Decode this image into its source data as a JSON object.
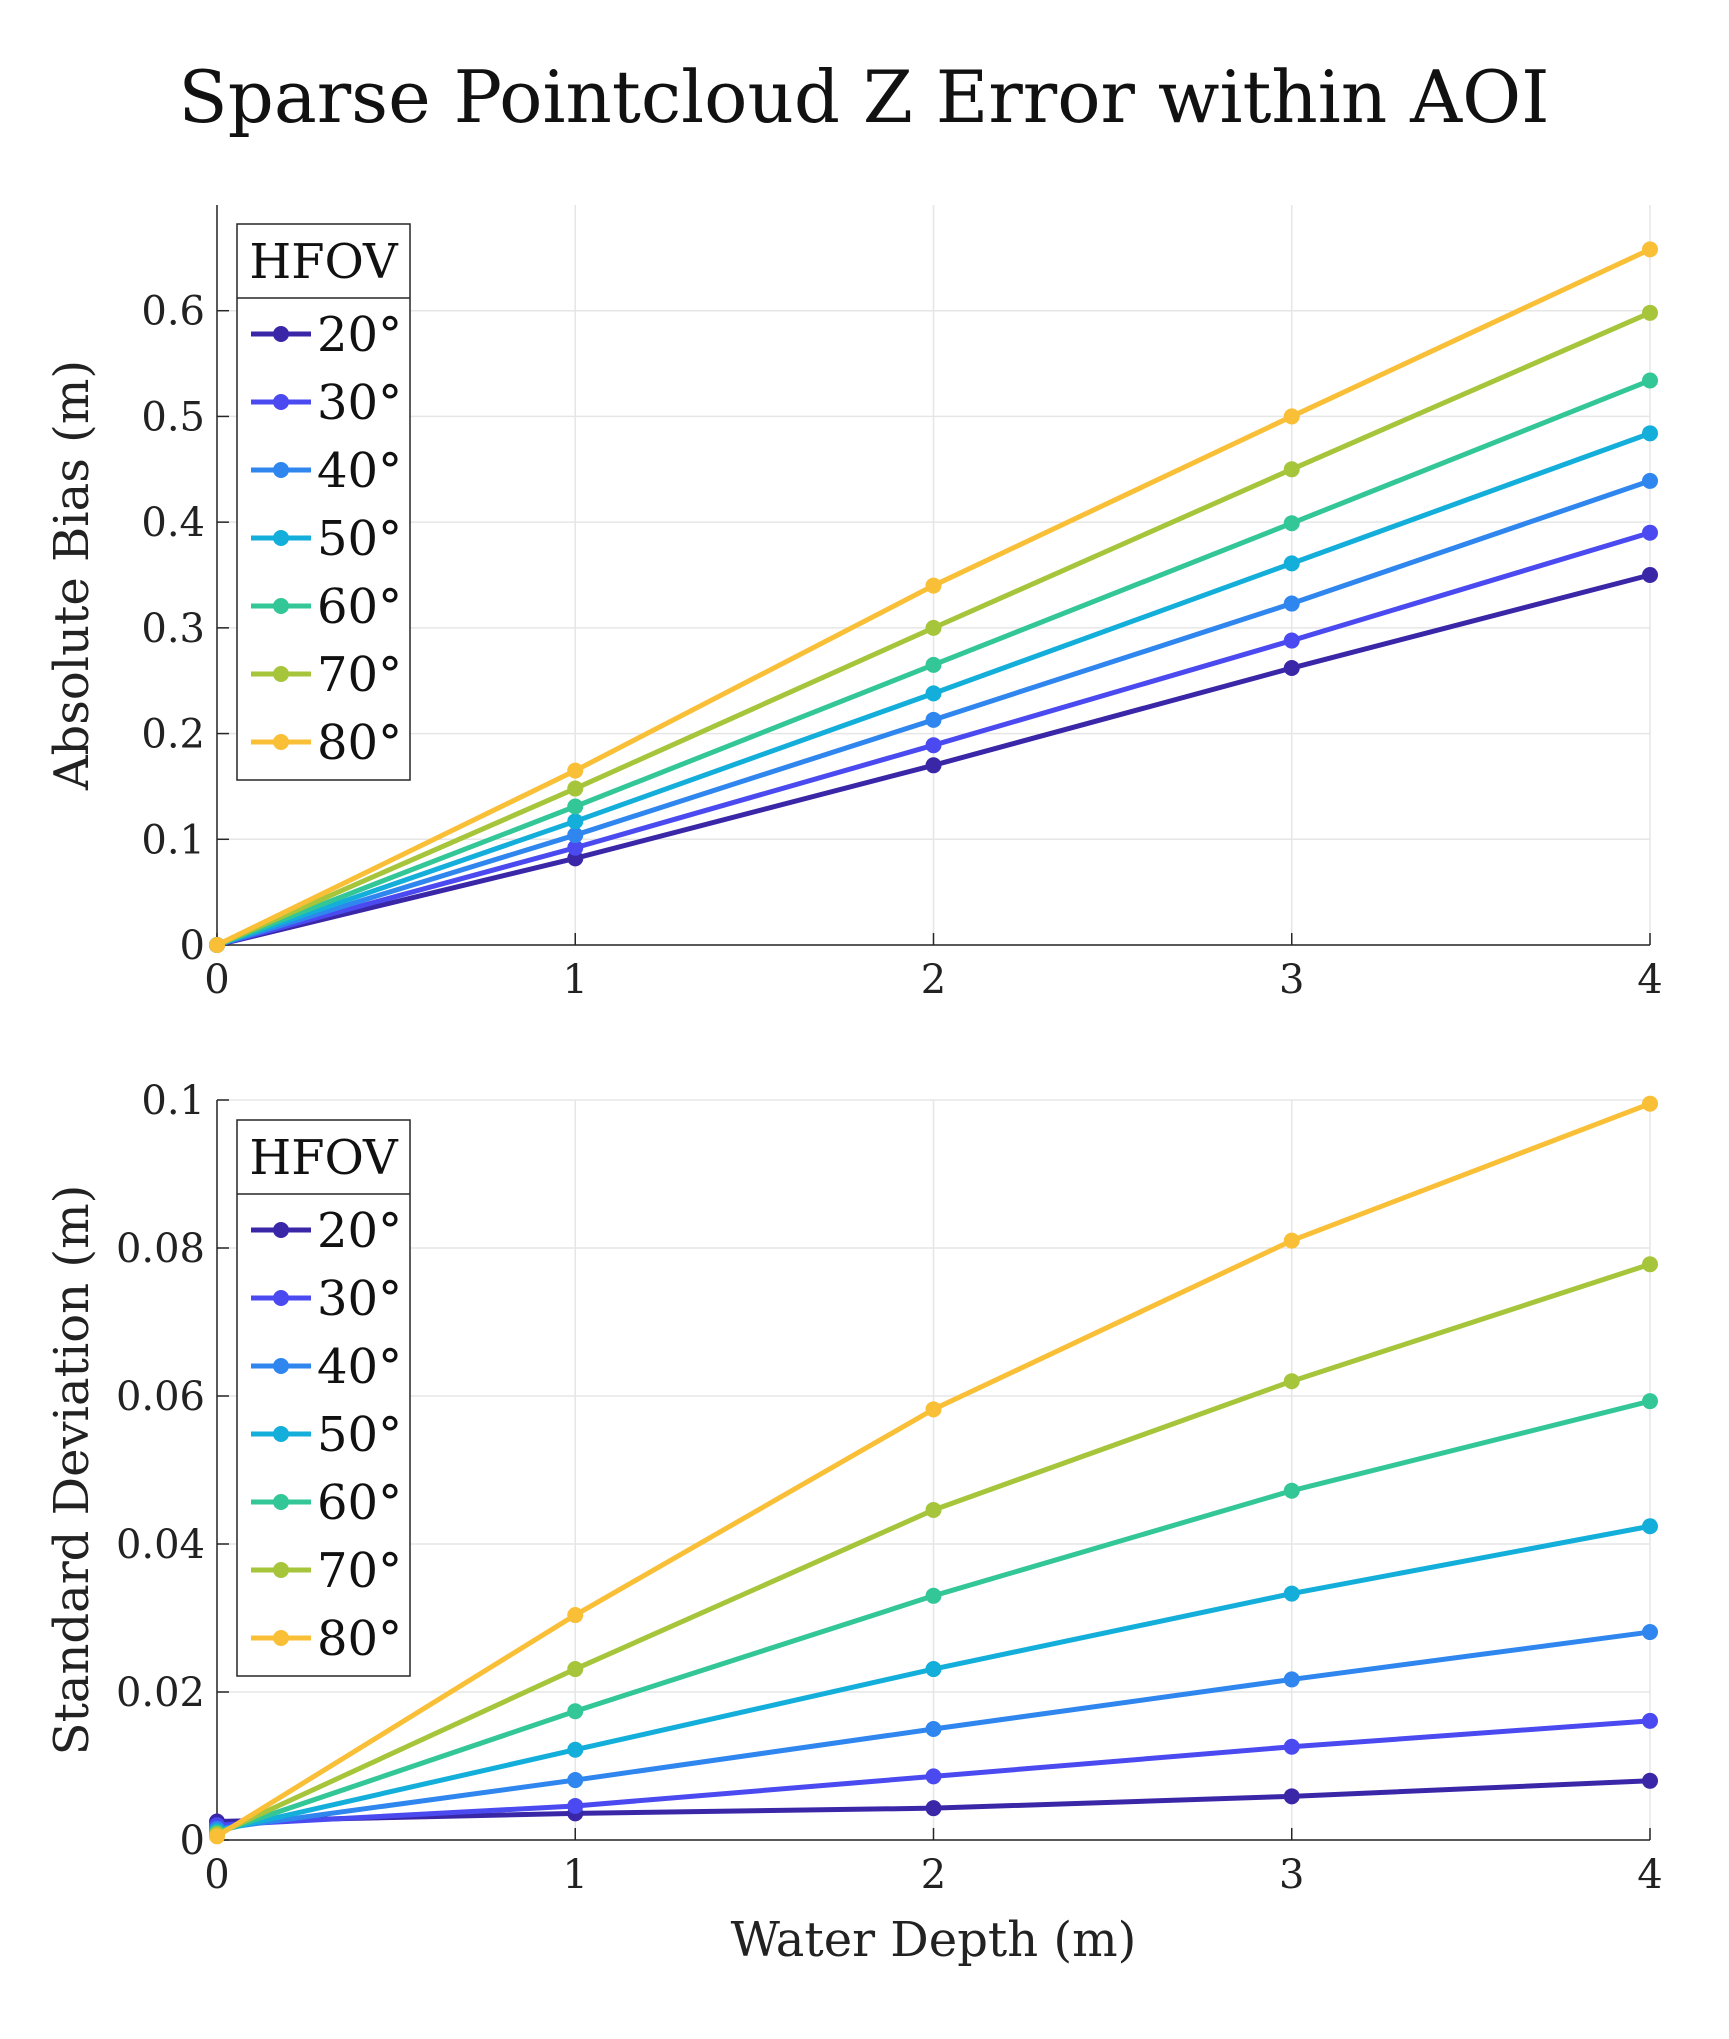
{
  "figure": {
    "title": "Sparse Pointcloud Z Error within AOI"
  },
  "chart_data": [
    {
      "type": "line",
      "title": "",
      "xlabel": "",
      "ylabel": "Absolute Bias (m)",
      "xlim": [
        0,
        4
      ],
      "ylim": [
        0,
        0.7
      ],
      "x": [
        0,
        1,
        2,
        3,
        4
      ],
      "xticks": [
        "0",
        "1",
        "2",
        "3",
        "4"
      ],
      "yticks": [
        0,
        0.1,
        0.2,
        0.3,
        0.4,
        0.5,
        0.6
      ],
      "ytick_labels": [
        "0",
        "0.1",
        "0.2",
        "0.3",
        "0.4",
        "0.5",
        "0.6"
      ],
      "grid": true,
      "legend": {
        "title": "HFOV",
        "location": "top-left"
      },
      "series": [
        {
          "name": "20°",
          "color": "#3a27a8",
          "values": [
            0,
            0.082,
            0.17,
            0.262,
            0.35
          ]
        },
        {
          "name": "30°",
          "color": "#4a4af0",
          "values": [
            0,
            0.092,
            0.189,
            0.288,
            0.39
          ]
        },
        {
          "name": "40°",
          "color": "#2f86ee",
          "values": [
            0,
            0.104,
            0.213,
            0.323,
            0.439
          ]
        },
        {
          "name": "50°",
          "color": "#13aed9",
          "values": [
            0,
            0.117,
            0.238,
            0.361,
            0.484
          ]
        },
        {
          "name": "60°",
          "color": "#33c697",
          "values": [
            0,
            0.131,
            0.265,
            0.399,
            0.534
          ]
        },
        {
          "name": "70°",
          "color": "#a6c53b",
          "values": [
            0,
            0.148,
            0.3,
            0.45,
            0.598
          ]
        },
        {
          "name": "80°",
          "color": "#f9bf37",
          "values": [
            0,
            0.165,
            0.34,
            0.5,
            0.658
          ]
        }
      ]
    },
    {
      "type": "line",
      "title": "",
      "xlabel": "Water Depth (m)",
      "ylabel": "Standard Deviation (m)",
      "xlim": [
        0,
        4
      ],
      "ylim": [
        0,
        0.1
      ],
      "x": [
        0,
        1,
        2,
        3,
        4
      ],
      "xticks": [
        "0",
        "1",
        "2",
        "3",
        "4"
      ],
      "yticks": [
        0,
        0.02,
        0.04,
        0.06,
        0.08,
        0.1
      ],
      "ytick_labels": [
        "0",
        "0.02",
        "0.04",
        "0.06",
        "0.08",
        "0.1"
      ],
      "grid": true,
      "legend": {
        "title": "HFOV",
        "location": "top-left"
      },
      "series": [
        {
          "name": "20°",
          "color": "#3a27a8",
          "values": [
            0.0025,
            0.0036,
            0.0043,
            0.0059,
            0.008
          ]
        },
        {
          "name": "30°",
          "color": "#4a4af0",
          "values": [
            0.002,
            0.0046,
            0.0086,
            0.0126,
            0.0161
          ]
        },
        {
          "name": "40°",
          "color": "#2f86ee",
          "values": [
            0.0015,
            0.0081,
            0.015,
            0.0217,
            0.0281
          ]
        },
        {
          "name": "50°",
          "color": "#13aed9",
          "values": [
            0.0012,
            0.0122,
            0.0231,
            0.0333,
            0.0424
          ]
        },
        {
          "name": "60°",
          "color": "#33c697",
          "values": [
            0.001,
            0.0174,
            0.033,
            0.0472,
            0.0593
          ]
        },
        {
          "name": "70°",
          "color": "#a6c53b",
          "values": [
            0.0008,
            0.0231,
            0.0446,
            0.062,
            0.0778
          ]
        },
        {
          "name": "80°",
          "color": "#f9bf37",
          "values": [
            0.0005,
            0.0304,
            0.0582,
            0.081,
            0.0995
          ]
        }
      ]
    }
  ]
}
